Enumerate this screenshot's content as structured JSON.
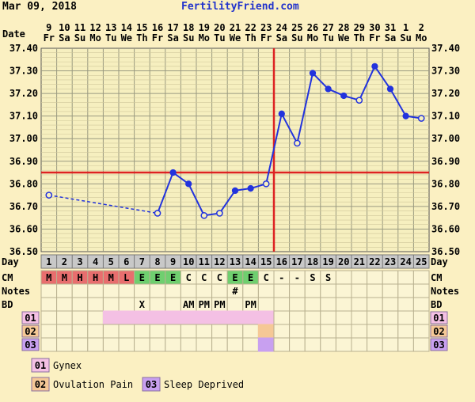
{
  "header": {
    "date": "Mar 09, 2018",
    "site": "FertilityFriend.com"
  },
  "row_labels": {
    "date": "Date",
    "day": "Day",
    "cm": "CM",
    "notes": "Notes",
    "bd": "BD"
  },
  "columns": [
    {
      "date": "9",
      "wd": "Fr",
      "day": "1",
      "cm": "M",
      "notes": "",
      "bd": ""
    },
    {
      "date": "10",
      "wd": "Sa",
      "day": "2",
      "cm": "M",
      "notes": "",
      "bd": ""
    },
    {
      "date": "11",
      "wd": "Su",
      "day": "3",
      "cm": "H",
      "notes": "",
      "bd": ""
    },
    {
      "date": "12",
      "wd": "Mo",
      "day": "4",
      "cm": "H",
      "notes": "",
      "bd": ""
    },
    {
      "date": "13",
      "wd": "Tu",
      "day": "5",
      "cm": "M",
      "notes": "",
      "bd": ""
    },
    {
      "date": "14",
      "wd": "We",
      "day": "6",
      "cm": "L",
      "notes": "",
      "bd": ""
    },
    {
      "date": "15",
      "wd": "Th",
      "day": "7",
      "cm": "E",
      "notes": "",
      "bd": "X"
    },
    {
      "date": "16",
      "wd": "Fr",
      "day": "8",
      "cm": "E",
      "notes": "",
      "bd": ""
    },
    {
      "date": "17",
      "wd": "Sa",
      "day": "9",
      "cm": "E",
      "notes": "",
      "bd": ""
    },
    {
      "date": "18",
      "wd": "Su",
      "day": "10",
      "cm": "C",
      "notes": "",
      "bd": "AM"
    },
    {
      "date": "19",
      "wd": "Mo",
      "day": "11",
      "cm": "C",
      "notes": "",
      "bd": "PM"
    },
    {
      "date": "20",
      "wd": "Tu",
      "day": "12",
      "cm": "C",
      "notes": "",
      "bd": "PM"
    },
    {
      "date": "21",
      "wd": "We",
      "day": "13",
      "cm": "E",
      "notes": "#",
      "bd": ""
    },
    {
      "date": "22",
      "wd": "Th",
      "day": "14",
      "cm": "E",
      "notes": "",
      "bd": "PM"
    },
    {
      "date": "23",
      "wd": "Fr",
      "day": "15",
      "cm": "C",
      "notes": "",
      "bd": ""
    },
    {
      "date": "24",
      "wd": "Sa",
      "day": "16",
      "cm": "-",
      "notes": "",
      "bd": ""
    },
    {
      "date": "25",
      "wd": "Su",
      "day": "17",
      "cm": "-",
      "notes": "",
      "bd": ""
    },
    {
      "date": "26",
      "wd": "Mo",
      "day": "18",
      "cm": "S",
      "notes": "",
      "bd": ""
    },
    {
      "date": "27",
      "wd": "Tu",
      "day": "19",
      "cm": "S",
      "notes": "",
      "bd": ""
    },
    {
      "date": "28",
      "wd": "We",
      "day": "20",
      "cm": "",
      "notes": "",
      "bd": ""
    },
    {
      "date": "29",
      "wd": "Th",
      "day": "21",
      "cm": "",
      "notes": "",
      "bd": ""
    },
    {
      "date": "30",
      "wd": "Fr",
      "day": "22",
      "cm": "",
      "notes": "",
      "bd": ""
    },
    {
      "date": "31",
      "wd": "Sa",
      "day": "23",
      "cm": "",
      "notes": "",
      "bd": ""
    },
    {
      "date": "1",
      "wd": "Su",
      "day": "24",
      "cm": "",
      "notes": "",
      "bd": ""
    },
    {
      "date": "2",
      "wd": "Mo",
      "day": "25",
      "cm": "",
      "notes": "",
      "bd": ""
    }
  ],
  "cm_colors": {
    "M": "#e86e6e",
    "H": "#e86e6e",
    "L": "#e86e6e",
    "E": "#6fcf6f"
  },
  "custom_rows": [
    {
      "code": "01",
      "color": "#f4c0e4",
      "label": "Gynex",
      "days": [
        5,
        6,
        7,
        8,
        9,
        10,
        11,
        12,
        13,
        14,
        15
      ]
    },
    {
      "code": "02",
      "color": "#f5c896",
      "label": "Ovulation Pain",
      "days": [
        15
      ]
    },
    {
      "code": "03",
      "color": "#c8a0f0",
      "label": "Sleep Deprived",
      "days": [
        15
      ]
    }
  ],
  "chart_data": {
    "type": "line",
    "x": [
      1,
      2,
      3,
      4,
      5,
      6,
      7,
      8,
      9,
      10,
      11,
      12,
      13,
      14,
      15,
      16,
      17,
      18,
      19,
      20,
      21,
      22,
      23,
      24,
      25
    ],
    "y": [
      36.75,
      null,
      null,
      null,
      null,
      null,
      null,
      36.67,
      36.85,
      36.8,
      36.66,
      36.67,
      36.77,
      36.78,
      36.8,
      37.11,
      36.98,
      37.29,
      37.22,
      37.19,
      37.17,
      37.32,
      37.22,
      37.1,
      37.09
    ],
    "open_points": [
      1,
      8,
      11,
      12,
      15,
      17,
      21,
      25
    ],
    "ylim": [
      36.5,
      37.4
    ],
    "yticks": [
      "36.50",
      "36.60",
      "36.70",
      "36.80",
      "36.90",
      "37.00",
      "37.10",
      "37.20",
      "37.30",
      "37.40"
    ],
    "coverline": 36.85,
    "ovulation_day": 15,
    "line_color": "#2233dd",
    "ref_color": "#dd2222",
    "grid": true
  }
}
